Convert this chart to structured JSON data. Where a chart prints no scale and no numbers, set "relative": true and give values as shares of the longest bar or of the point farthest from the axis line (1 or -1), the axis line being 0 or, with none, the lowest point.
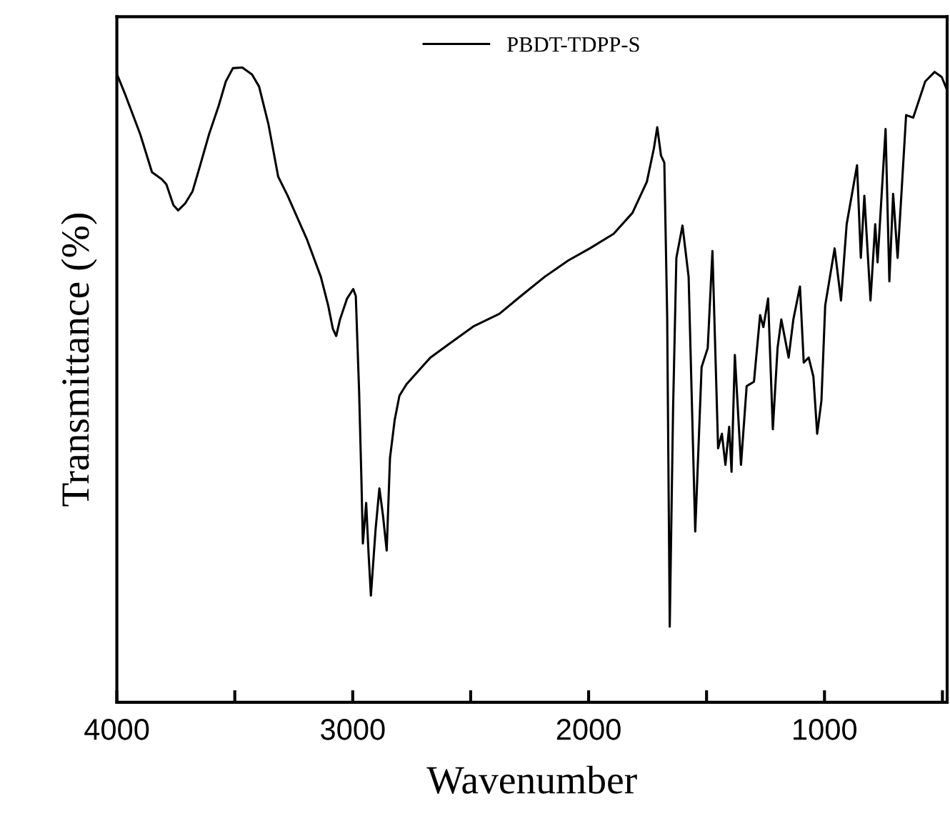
{
  "chart_data": {
    "type": "line",
    "relative": true,
    "xlabel": "Wavenumber",
    "ylabel": "Transmittance (%)",
    "tick_labels": "x",
    "legend": "top",
    "grid": false,
    "xlim": [
      4000,
      480
    ],
    "xticks": [
      4000,
      {
        "value": 3500,
        "label": null
      },
      3000,
      {
        "value": 2500,
        "label": null
      },
      2000,
      {
        "value": 1500,
        "label": null
      },
      1000,
      {
        "value": 500,
        "label": null
      }
    ],
    "series": [
      {
        "name": "PBDT-TDPP-S",
        "color": "#000000",
        "x": [
          4000,
          3962,
          3901,
          3851,
          3810,
          3790,
          3760,
          3740,
          3710,
          3679,
          3649,
          3609,
          3568,
          3538,
          3508,
          3468,
          3427,
          3397,
          3357,
          3316,
          3276,
          3195,
          3135,
          3104,
          3084,
          3070,
          3054,
          3024,
          2998,
          2987,
          2973,
          2963,
          2957,
          2943,
          2933,
          2923,
          2903,
          2887,
          2872,
          2856,
          2842,
          2822,
          2802,
          2772,
          2671,
          2590,
          2489,
          2378,
          2287,
          2187,
          2086,
          1995,
          1894,
          1814,
          1753,
          1723,
          1709,
          1693,
          1679,
          1667,
          1656,
          1642,
          1628,
          1602,
          1576,
          1548,
          1521,
          1495,
          1475,
          1451,
          1435,
          1420,
          1404,
          1394,
          1380,
          1354,
          1330,
          1299,
          1273,
          1259,
          1239,
          1219,
          1199,
          1183,
          1152,
          1132,
          1104,
          1088,
          1067,
          1047,
          1031,
          1013,
          997,
          957,
          930,
          906,
          862,
          846,
          831,
          805,
          785,
          775,
          741,
          725,
          709,
          690,
          654,
          624,
          573,
          533,
          503,
          482
        ],
        "values": [
          0.99,
          0.955,
          0.895,
          0.835,
          0.824,
          0.816,
          0.783,
          0.775,
          0.786,
          0.805,
          0.843,
          0.895,
          0.94,
          0.978,
          0.999,
          1.0,
          0.989,
          0.97,
          0.91,
          0.828,
          0.798,
          0.73,
          0.67,
          0.625,
          0.588,
          0.577,
          0.603,
          0.636,
          0.651,
          0.64,
          0.49,
          0.348,
          0.25,
          0.314,
          0.235,
          0.168,
          0.273,
          0.337,
          0.295,
          0.239,
          0.385,
          0.445,
          0.483,
          0.501,
          0.543,
          0.565,
          0.592,
          0.612,
          0.64,
          0.67,
          0.696,
          0.715,
          0.738,
          0.771,
          0.82,
          0.873,
          0.906,
          0.861,
          0.85,
          0.61,
          0.119,
          0.46,
          0.7,
          0.751,
          0.67,
          0.269,
          0.528,
          0.558,
          0.711,
          0.4,
          0.423,
          0.374,
          0.434,
          0.363,
          0.547,
          0.374,
          0.498,
          0.505,
          0.61,
          0.591,
          0.636,
          0.43,
          0.558,
          0.603,
          0.543,
          0.603,
          0.655,
          0.535,
          0.543,
          0.513,
          0.423,
          0.475,
          0.625,
          0.715,
          0.633,
          0.753,
          0.846,
          0.7,
          0.798,
          0.633,
          0.753,
          0.693,
          0.903,
          0.663,
          0.801,
          0.7,
          0.925,
          0.921,
          0.978,
          0.993,
          0.985,
          0.966
        ]
      }
    ]
  }
}
